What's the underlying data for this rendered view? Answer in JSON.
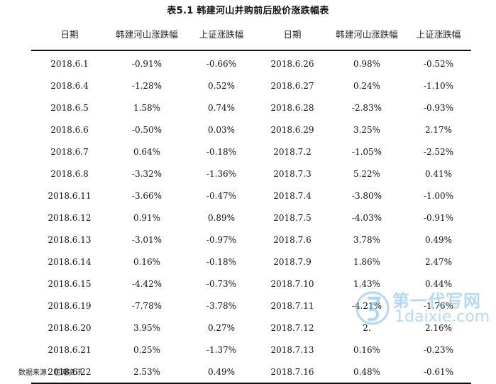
{
  "caption": "表5.1  韩建河山并购前后股价涨跌幅表",
  "columns": [
    "日期",
    "韩建河山涨跌幅",
    "上证涨跌幅",
    "日期",
    "韩建河山涨跌幅",
    "上证涨跌幅"
  ],
  "rows": [
    [
      "2018.6.1",
      "-0.91%",
      "-0.66%",
      "2018.6.26",
      "0.98%",
      "-0.52%"
    ],
    [
      "2018.6.4",
      "-1.28%",
      "0.52%",
      "2018.6.27",
      "0.24%",
      "-1.10%"
    ],
    [
      "2018.6.5",
      "1.58%",
      "0.74%",
      "2018.6.28",
      "-2.83%",
      "-0.93%"
    ],
    [
      "2018.6.6",
      "-0.50%",
      "0.03%",
      "2018.6.29",
      "3.25%",
      "2.17%"
    ],
    [
      "2018.6.7",
      "0.64%",
      "-0.18%",
      "2018.7.2",
      "-1.05%",
      "-2.52%"
    ],
    [
      "2018.6.8",
      "-3.32%",
      "-1.36%",
      "2018.7.3",
      "5.22%",
      "0.41%"
    ],
    [
      "2018.6.11",
      "-3.66%",
      "-0.47%",
      "2018.7.4",
      "-3.80%",
      "-1.00%"
    ],
    [
      "2018.6.12",
      "0.91%",
      "0.89%",
      "2018.7.5",
      "-4.03%",
      "-0.91%"
    ],
    [
      "2018.6.13",
      "-3.01%",
      "-0.97%",
      "2018.7.6",
      "3.78%",
      "0.49%"
    ],
    [
      "2018.6.14",
      "0.16%",
      "-0.18%",
      "2018.7.9",
      "1.86%",
      "2.47%"
    ],
    [
      "2018.6.15",
      "-4.42%",
      "-0.73%",
      "2018.7.10",
      "1.43%",
      "0.44%"
    ],
    [
      "2018.6.19",
      "-7.78%",
      "-3.78%",
      "2018.7.11",
      "-4.21%",
      "-1.76%"
    ],
    [
      "2018.6.20",
      "3.95%",
      "0.27%",
      "2018.7.12",
      "2.",
      "2.16%"
    ],
    [
      "2018.6.21",
      "0.25%",
      "-1.37%",
      "2018.7.13",
      "0.16%",
      "-0.23%"
    ],
    [
      "2018.6.22",
      "2.53%",
      "0.49%",
      "2018.7.16",
      "0.48%",
      "-0.61%"
    ]
  ],
  "source": "数据来源：巨潮资讯",
  "watermark": {
    "title": "第一代写网",
    "domain": "1daixie.com",
    "color": "#78b9eb"
  }
}
